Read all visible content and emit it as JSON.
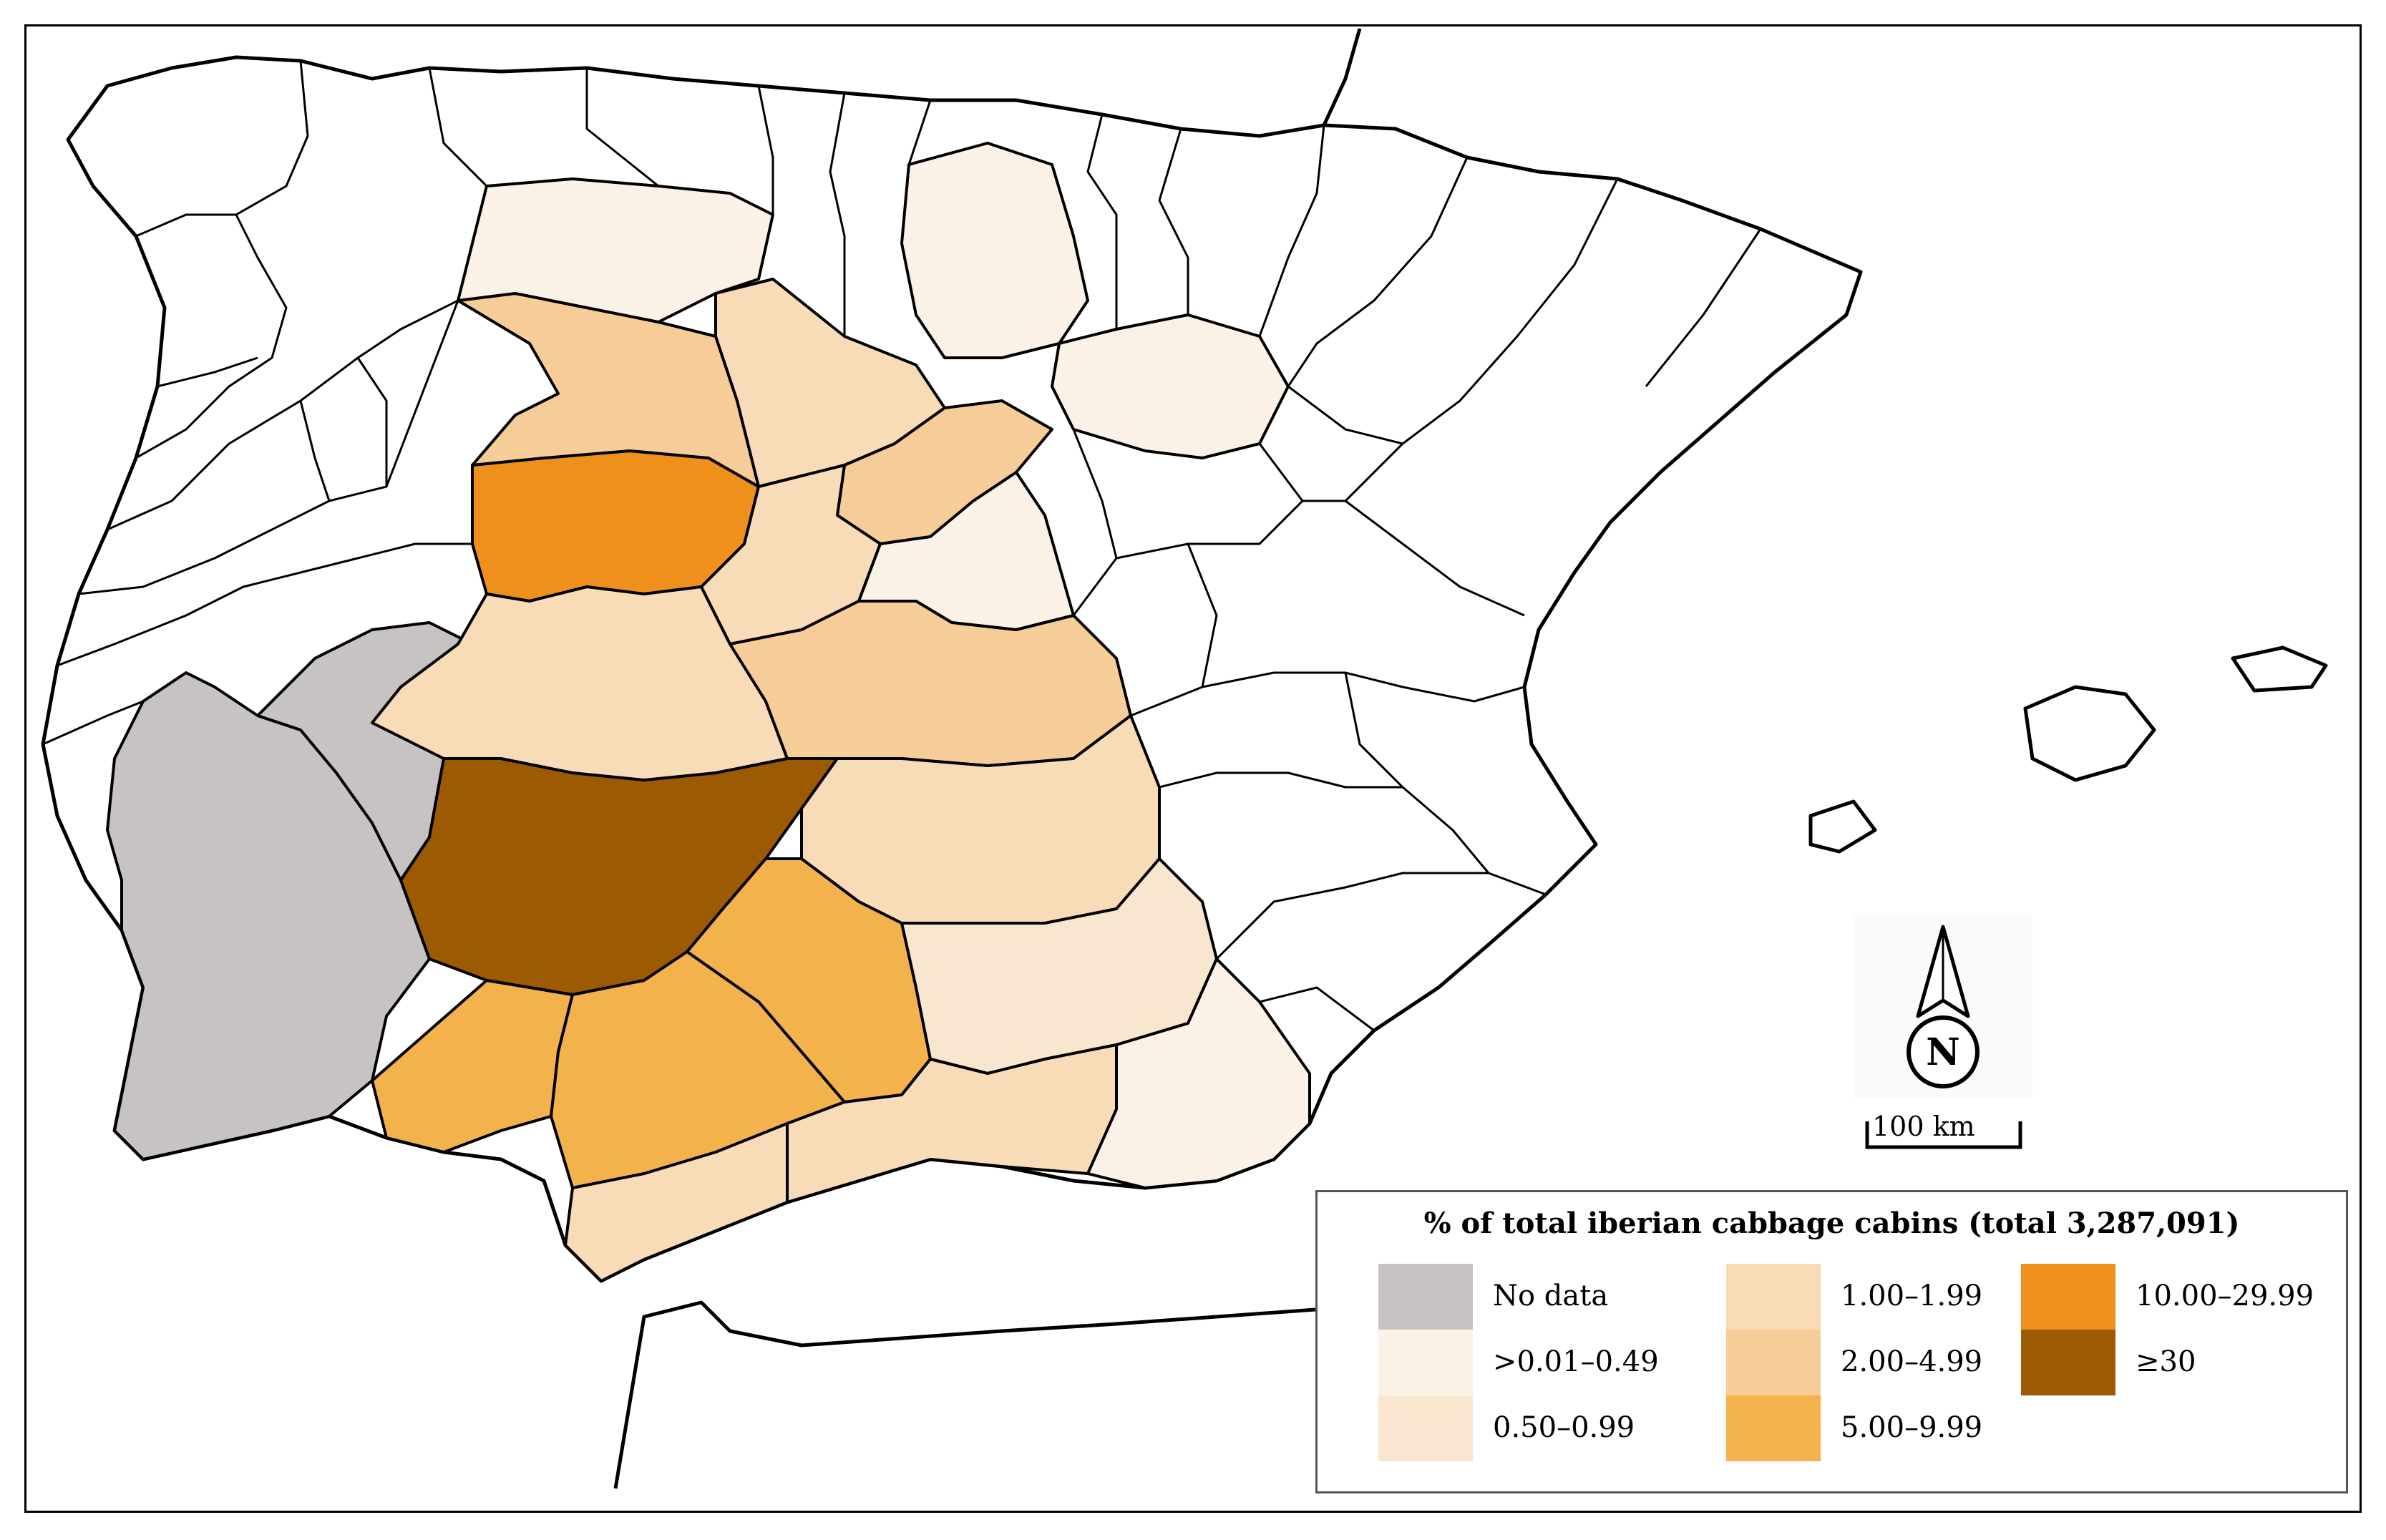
{
  "legend": {
    "title": "% of total iberian cabbage cabins (total 3,287,091)",
    "items": [
      {
        "label": "No data",
        "color": "#c7c3c3"
      },
      {
        "label": ">0.01–0.49",
        "color": "#fbf2e7"
      },
      {
        "label": "0.50–0.99",
        "color": "#f9e6cf"
      },
      {
        "label": "1.00–1.99",
        "color": "#f8dcb7"
      },
      {
        "label": "2.00–4.99",
        "color": "#f6cd98"
      },
      {
        "label": "5.00–9.99",
        "color": "#f4b24d"
      },
      {
        "label": "10.00–29.99",
        "color": "#f0901c"
      },
      {
        "label": "≥30",
        "color": "#9c5a02"
      }
    ]
  },
  "north_arrow": {
    "letter": "N",
    "icon": "north-arrow-icon"
  },
  "scale_bar": {
    "label": "100 km"
  },
  "colors": {
    "border": "#000000",
    "region_default": "#ffffff",
    "no_data": "#c7c3c3"
  }
}
